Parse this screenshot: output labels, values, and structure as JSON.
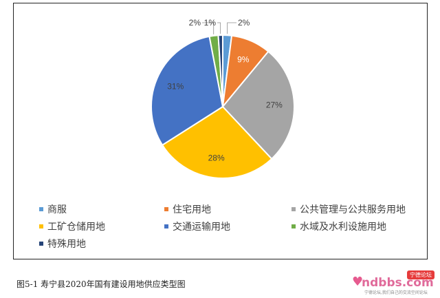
{
  "chart_data": {
    "type": "pie",
    "title": "",
    "categories": [
      "商服",
      "住宅用地",
      "公共管理与公共服务用地",
      "工矿仓储用地",
      "交通运输用地",
      "水域及水利设施用地",
      "特殊用地"
    ],
    "values": [
      2,
      9,
      27,
      28,
      31,
      2,
      1
    ],
    "labels": [
      "2%",
      "9%",
      "27%",
      "28%",
      "31%",
      "2%",
      "1%"
    ],
    "colors": [
      "#5b9bd5",
      "#ed7d31",
      "#a5a5a5",
      "#ffc000",
      "#4472c4",
      "#70ad47",
      "#264478"
    ],
    "legend_position": "bottom"
  },
  "caption": "图5-1 寿宁县2020年国有建设用地供应类型图",
  "watermark": {
    "main": "ndbbs.com",
    "tag": "宁德论坛",
    "sub": "宁德论坛,我们自己的交流空间论坛"
  }
}
